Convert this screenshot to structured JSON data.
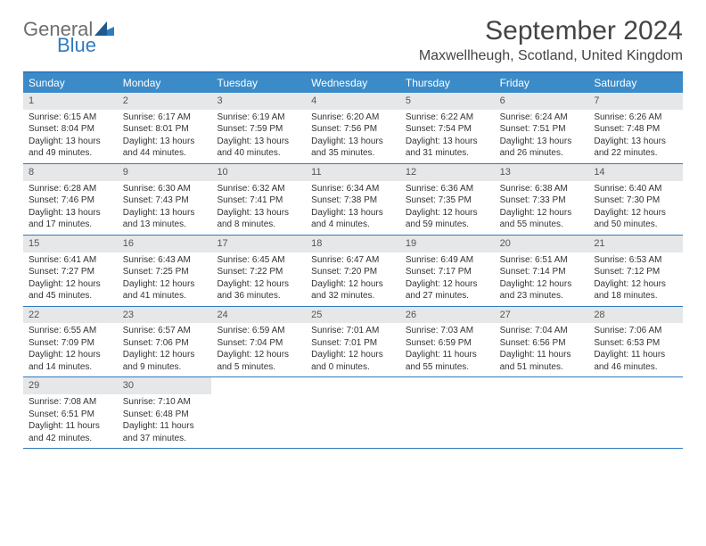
{
  "logo": {
    "text1": "General",
    "text2": "Blue"
  },
  "title": "September 2024",
  "location": "Maxwellheugh, Scotland, United Kingdom",
  "colors": {
    "header_bg": "#3b8bc9",
    "header_text": "#ffffff",
    "daynum_bg": "#e6e7e8",
    "rule": "#2f7bbf",
    "body_text": "#333333",
    "title_text": "#444444",
    "logo_gray": "#6d6e71",
    "logo_blue": "#2f7bbf"
  },
  "day_names": [
    "Sunday",
    "Monday",
    "Tuesday",
    "Wednesday",
    "Thursday",
    "Friday",
    "Saturday"
  ],
  "weeks": [
    [
      {
        "n": "1",
        "sr": "Sunrise: 6:15 AM",
        "ss": "Sunset: 8:04 PM",
        "dl1": "Daylight: 13 hours",
        "dl2": "and 49 minutes."
      },
      {
        "n": "2",
        "sr": "Sunrise: 6:17 AM",
        "ss": "Sunset: 8:01 PM",
        "dl1": "Daylight: 13 hours",
        "dl2": "and 44 minutes."
      },
      {
        "n": "3",
        "sr": "Sunrise: 6:19 AM",
        "ss": "Sunset: 7:59 PM",
        "dl1": "Daylight: 13 hours",
        "dl2": "and 40 minutes."
      },
      {
        "n": "4",
        "sr": "Sunrise: 6:20 AM",
        "ss": "Sunset: 7:56 PM",
        "dl1": "Daylight: 13 hours",
        "dl2": "and 35 minutes."
      },
      {
        "n": "5",
        "sr": "Sunrise: 6:22 AM",
        "ss": "Sunset: 7:54 PM",
        "dl1": "Daylight: 13 hours",
        "dl2": "and 31 minutes."
      },
      {
        "n": "6",
        "sr": "Sunrise: 6:24 AM",
        "ss": "Sunset: 7:51 PM",
        "dl1": "Daylight: 13 hours",
        "dl2": "and 26 minutes."
      },
      {
        "n": "7",
        "sr": "Sunrise: 6:26 AM",
        "ss": "Sunset: 7:48 PM",
        "dl1": "Daylight: 13 hours",
        "dl2": "and 22 minutes."
      }
    ],
    [
      {
        "n": "8",
        "sr": "Sunrise: 6:28 AM",
        "ss": "Sunset: 7:46 PM",
        "dl1": "Daylight: 13 hours",
        "dl2": "and 17 minutes."
      },
      {
        "n": "9",
        "sr": "Sunrise: 6:30 AM",
        "ss": "Sunset: 7:43 PM",
        "dl1": "Daylight: 13 hours",
        "dl2": "and 13 minutes."
      },
      {
        "n": "10",
        "sr": "Sunrise: 6:32 AM",
        "ss": "Sunset: 7:41 PM",
        "dl1": "Daylight: 13 hours",
        "dl2": "and 8 minutes."
      },
      {
        "n": "11",
        "sr": "Sunrise: 6:34 AM",
        "ss": "Sunset: 7:38 PM",
        "dl1": "Daylight: 13 hours",
        "dl2": "and 4 minutes."
      },
      {
        "n": "12",
        "sr": "Sunrise: 6:36 AM",
        "ss": "Sunset: 7:35 PM",
        "dl1": "Daylight: 12 hours",
        "dl2": "and 59 minutes."
      },
      {
        "n": "13",
        "sr": "Sunrise: 6:38 AM",
        "ss": "Sunset: 7:33 PM",
        "dl1": "Daylight: 12 hours",
        "dl2": "and 55 minutes."
      },
      {
        "n": "14",
        "sr": "Sunrise: 6:40 AM",
        "ss": "Sunset: 7:30 PM",
        "dl1": "Daylight: 12 hours",
        "dl2": "and 50 minutes."
      }
    ],
    [
      {
        "n": "15",
        "sr": "Sunrise: 6:41 AM",
        "ss": "Sunset: 7:27 PM",
        "dl1": "Daylight: 12 hours",
        "dl2": "and 45 minutes."
      },
      {
        "n": "16",
        "sr": "Sunrise: 6:43 AM",
        "ss": "Sunset: 7:25 PM",
        "dl1": "Daylight: 12 hours",
        "dl2": "and 41 minutes."
      },
      {
        "n": "17",
        "sr": "Sunrise: 6:45 AM",
        "ss": "Sunset: 7:22 PM",
        "dl1": "Daylight: 12 hours",
        "dl2": "and 36 minutes."
      },
      {
        "n": "18",
        "sr": "Sunrise: 6:47 AM",
        "ss": "Sunset: 7:20 PM",
        "dl1": "Daylight: 12 hours",
        "dl2": "and 32 minutes."
      },
      {
        "n": "19",
        "sr": "Sunrise: 6:49 AM",
        "ss": "Sunset: 7:17 PM",
        "dl1": "Daylight: 12 hours",
        "dl2": "and 27 minutes."
      },
      {
        "n": "20",
        "sr": "Sunrise: 6:51 AM",
        "ss": "Sunset: 7:14 PM",
        "dl1": "Daylight: 12 hours",
        "dl2": "and 23 minutes."
      },
      {
        "n": "21",
        "sr": "Sunrise: 6:53 AM",
        "ss": "Sunset: 7:12 PM",
        "dl1": "Daylight: 12 hours",
        "dl2": "and 18 minutes."
      }
    ],
    [
      {
        "n": "22",
        "sr": "Sunrise: 6:55 AM",
        "ss": "Sunset: 7:09 PM",
        "dl1": "Daylight: 12 hours",
        "dl2": "and 14 minutes."
      },
      {
        "n": "23",
        "sr": "Sunrise: 6:57 AM",
        "ss": "Sunset: 7:06 PM",
        "dl1": "Daylight: 12 hours",
        "dl2": "and 9 minutes."
      },
      {
        "n": "24",
        "sr": "Sunrise: 6:59 AM",
        "ss": "Sunset: 7:04 PM",
        "dl1": "Daylight: 12 hours",
        "dl2": "and 5 minutes."
      },
      {
        "n": "25",
        "sr": "Sunrise: 7:01 AM",
        "ss": "Sunset: 7:01 PM",
        "dl1": "Daylight: 12 hours",
        "dl2": "and 0 minutes."
      },
      {
        "n": "26",
        "sr": "Sunrise: 7:03 AM",
        "ss": "Sunset: 6:59 PM",
        "dl1": "Daylight: 11 hours",
        "dl2": "and 55 minutes."
      },
      {
        "n": "27",
        "sr": "Sunrise: 7:04 AM",
        "ss": "Sunset: 6:56 PM",
        "dl1": "Daylight: 11 hours",
        "dl2": "and 51 minutes."
      },
      {
        "n": "28",
        "sr": "Sunrise: 7:06 AM",
        "ss": "Sunset: 6:53 PM",
        "dl1": "Daylight: 11 hours",
        "dl2": "and 46 minutes."
      }
    ],
    [
      {
        "n": "29",
        "sr": "Sunrise: 7:08 AM",
        "ss": "Sunset: 6:51 PM",
        "dl1": "Daylight: 11 hours",
        "dl2": "and 42 minutes."
      },
      {
        "n": "30",
        "sr": "Sunrise: 7:10 AM",
        "ss": "Sunset: 6:48 PM",
        "dl1": "Daylight: 11 hours",
        "dl2": "and 37 minutes."
      },
      null,
      null,
      null,
      null,
      null
    ]
  ]
}
